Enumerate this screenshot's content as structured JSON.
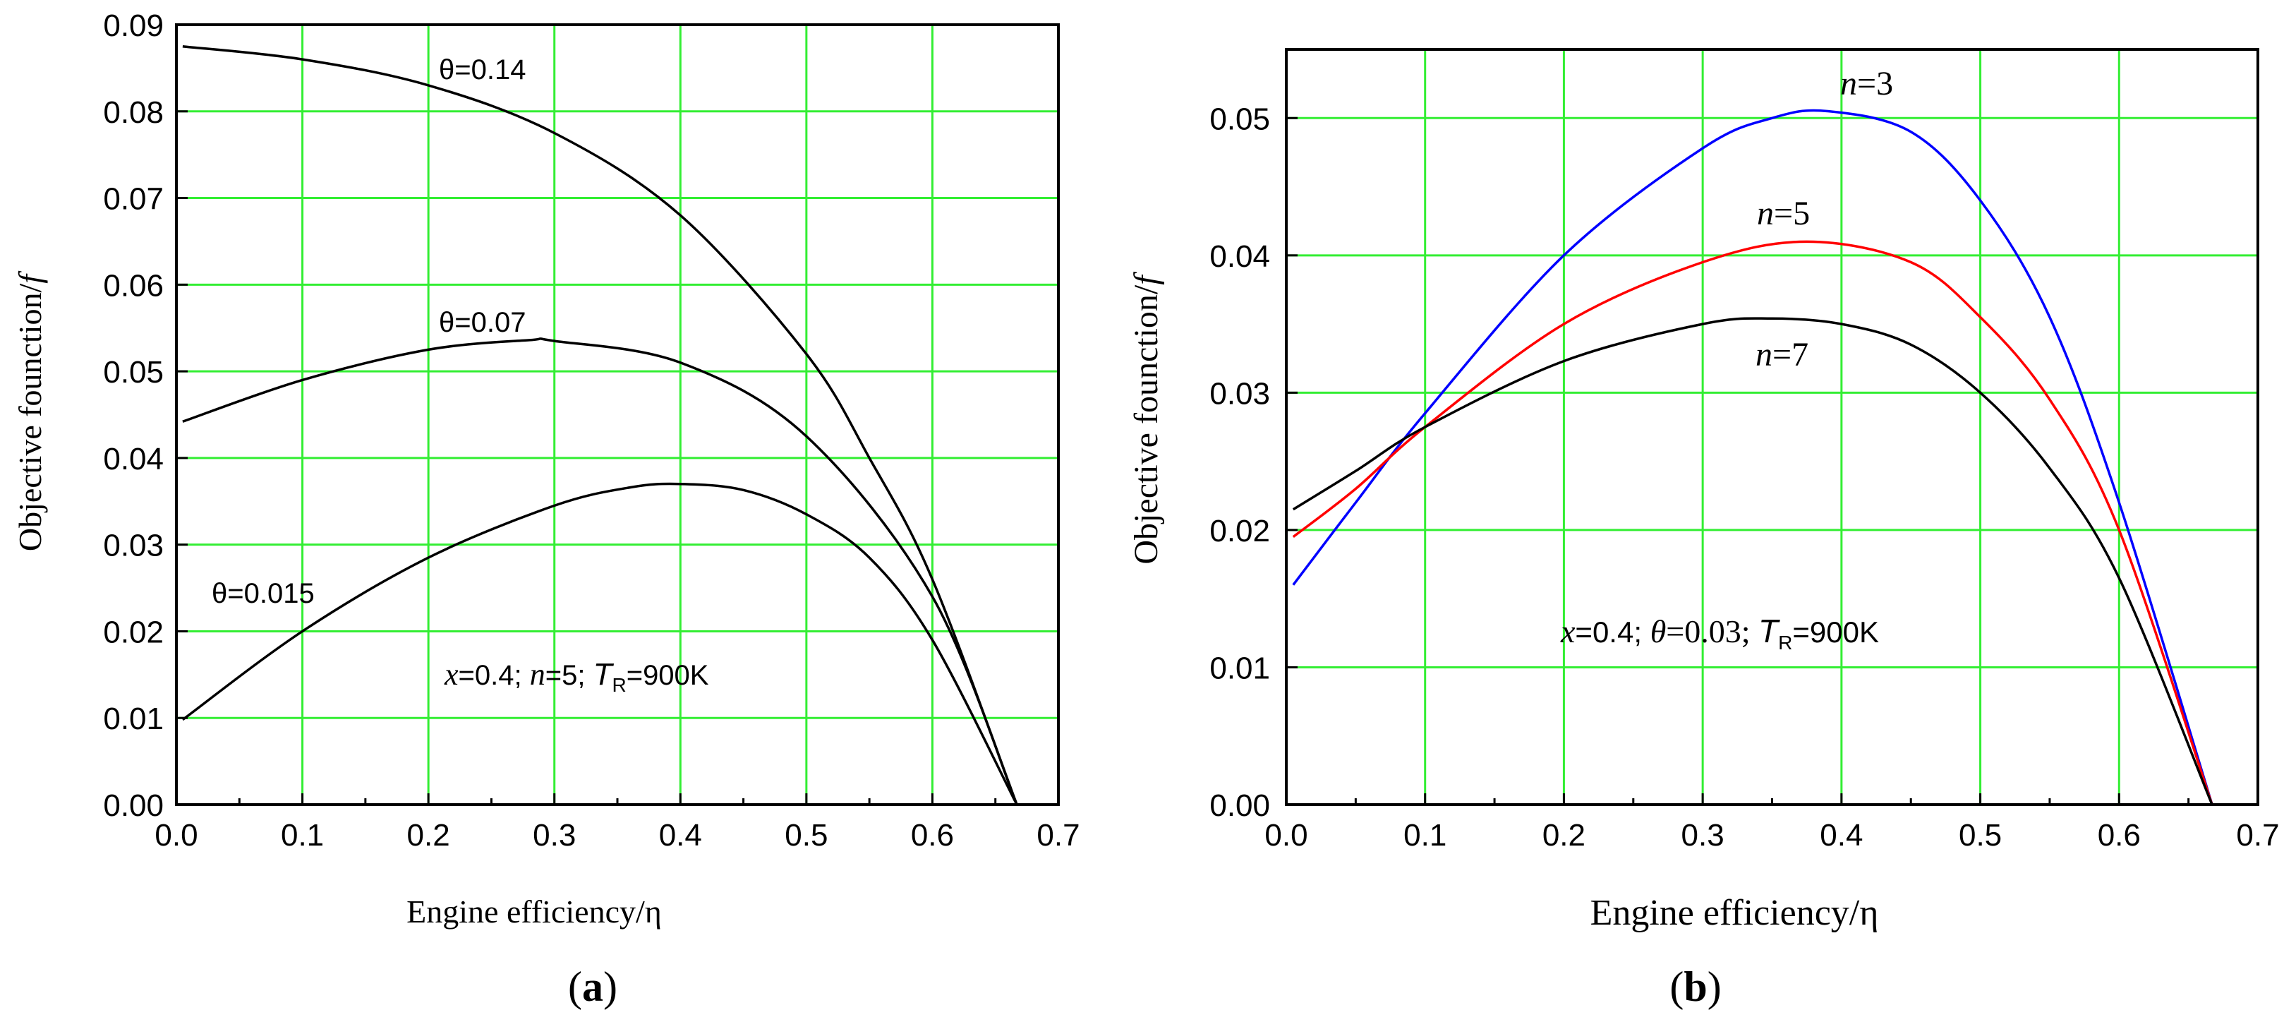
{
  "colors": {
    "grid": "#33ee33",
    "axis": "#000000",
    "black": "#000000",
    "red": "#ff0000",
    "blue": "#0000ff"
  },
  "chart_data": [
    {
      "type": "line",
      "panel_label": "a",
      "xlabel": "Engine efficiency/η",
      "ylabel_main": "Objective founction/",
      "ylabel_var": "f",
      "xlim": [
        0.0,
        0.7
      ],
      "ylim": [
        0.0,
        0.09
      ],
      "xticks": [
        "0.0",
        "0.1",
        "0.2",
        "0.3",
        "0.4",
        "0.5",
        "0.6",
        "0.7"
      ],
      "yticks": [
        "0.00",
        "0.01",
        "0.02",
        "0.03",
        "0.04",
        "0.05",
        "0.06",
        "0.07",
        "0.08",
        "0.09"
      ],
      "grid": true,
      "series": [
        {
          "name": "θ=0.14",
          "color": "#000000",
          "x": [
            0.005,
            0.1,
            0.2,
            0.3,
            0.4,
            0.5,
            0.55,
            0.6,
            0.667
          ],
          "y": [
            0.0875,
            0.086,
            0.083,
            0.0775,
            0.068,
            0.052,
            0.04,
            0.026,
            0.0
          ]
        },
        {
          "name": "θ=0.07",
          "color": "#000000",
          "x": [
            0.005,
            0.1,
            0.2,
            0.28,
            0.3,
            0.4,
            0.5,
            0.6,
            0.667
          ],
          "y": [
            0.0442,
            0.049,
            0.0525,
            0.0536,
            0.0535,
            0.051,
            0.0425,
            0.024,
            0.0
          ]
        },
        {
          "name": "θ=0.015",
          "color": "#000000",
          "x": [
            0.005,
            0.1,
            0.2,
            0.3,
            0.36,
            0.4,
            0.45,
            0.5,
            0.55,
            0.6,
            0.667
          ],
          "y": [
            0.0098,
            0.02,
            0.0285,
            0.0345,
            0.0366,
            0.037,
            0.0363,
            0.0335,
            0.0285,
            0.019,
            0.0
          ]
        }
      ],
      "annotations": [
        {
          "id": "a-label-014",
          "text": "θ=0.14"
        },
        {
          "id": "a-label-007",
          "text": "θ=0.07"
        },
        {
          "id": "a-label-0015",
          "text": "θ=0.015"
        }
      ],
      "params": {
        "v1": "x",
        "t1": "=0.4; ",
        "v2": "n",
        "t2": "=5; ",
        "v3": "T",
        "sub3": "R",
        "t3": "=900K"
      }
    },
    {
      "type": "line",
      "panel_label": "b",
      "xlabel": "Engine efficiency/η",
      "ylabel_main": "Objective founction/",
      "ylabel_var": "f",
      "xlim": [
        0.0,
        0.7
      ],
      "ylim": [
        0.0,
        0.055
      ],
      "xticks": [
        "0.0",
        "0.1",
        "0.2",
        "0.3",
        "0.4",
        "0.5",
        "0.6",
        "0.7"
      ],
      "yticks": [
        "0.00",
        "0.01",
        "0.02",
        "0.03",
        "0.04",
        "0.05"
      ],
      "grid": true,
      "series": [
        {
          "name": "n=3",
          "color": "#0000ff",
          "x": [
            0.005,
            0.05,
            0.1,
            0.2,
            0.3,
            0.35,
            0.39,
            0.45,
            0.5,
            0.55,
            0.6,
            0.667
          ],
          "y": [
            0.016,
            0.022,
            0.0285,
            0.04,
            0.0478,
            0.05,
            0.0505,
            0.049,
            0.044,
            0.0355,
            0.022,
            0.0
          ]
        },
        {
          "name": "n=5",
          "color": "#ff0000",
          "x": [
            0.005,
            0.05,
            0.1,
            0.2,
            0.3,
            0.375,
            0.45,
            0.5,
            0.55,
            0.6,
            0.667
          ],
          "y": [
            0.0195,
            0.023,
            0.0275,
            0.035,
            0.0395,
            0.041,
            0.0395,
            0.0355,
            0.0295,
            0.02,
            0.0
          ]
        },
        {
          "name": "n=7",
          "color": "#000000",
          "x": [
            0.005,
            0.05,
            0.1,
            0.2,
            0.3,
            0.35,
            0.4,
            0.45,
            0.5,
            0.55,
            0.6,
            0.667
          ],
          "y": [
            0.0215,
            0.0243,
            0.0275,
            0.0323,
            0.035,
            0.0354,
            0.035,
            0.0335,
            0.03,
            0.0245,
            0.0165,
            0.0
          ]
        }
      ],
      "annotations": [
        {
          "id": "b-label-n3",
          "var": "n",
          "text": "=3"
        },
        {
          "id": "b-label-n5",
          "var": "n",
          "text": "=5"
        },
        {
          "id": "b-label-n7",
          "var": "n",
          "text": "=7"
        }
      ],
      "params": {
        "v1": "x",
        "t1": "=0.4; ",
        "v2": "θ",
        "t2": "=0.03; ",
        "v3": "T",
        "sub3": "R",
        "t3": "=900K"
      }
    }
  ]
}
